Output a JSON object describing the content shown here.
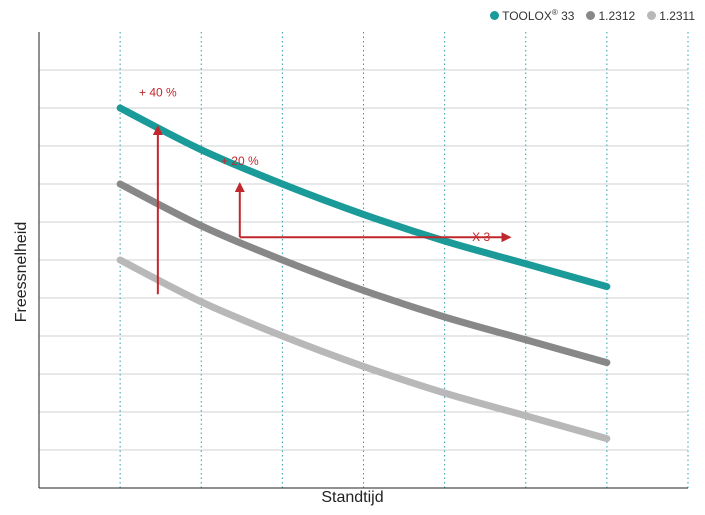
{
  "chart_data": {
    "type": "line",
    "title": "",
    "xlabel": "Standtijd",
    "ylabel": "Freessnelheid",
    "xlim": [
      0,
      16
    ],
    "ylim": [
      0,
      12
    ],
    "grid": true,
    "legend_position": "top-right",
    "series": [
      {
        "name": "TOOLOX® 33",
        "legend_main": "TOOLOX",
        "legend_sup": "®",
        "legend_tail": " 33",
        "color": "#1a9a99",
        "x": [
          2,
          4,
          6,
          8,
          10,
          12,
          14
        ],
        "y": [
          10.0,
          8.9,
          8.0,
          7.2,
          6.5,
          5.9,
          5.3
        ]
      },
      {
        "name": "1.2312",
        "legend_main": "1.2312",
        "legend_sup": "",
        "legend_tail": "",
        "color": "#888888",
        "x": [
          2,
          4,
          6,
          8,
          10,
          12,
          14
        ],
        "y": [
          8.0,
          6.9,
          6.0,
          5.2,
          4.5,
          3.9,
          3.3
        ]
      },
      {
        "name": "1.2311",
        "legend_main": "1.2311",
        "legend_sup": "",
        "legend_tail": "",
        "color": "#b8b8b8",
        "x": [
          2,
          4,
          6,
          8,
          10,
          12,
          14
        ],
        "y": [
          6.0,
          4.9,
          4.0,
          3.2,
          2.5,
          1.9,
          1.3
        ]
      }
    ],
    "annotations": [
      {
        "text": "+ 40 %",
        "x": 2.93,
        "y": 10.3
      },
      {
        "text": "+ 20 %",
        "x": 4.95,
        "y": 8.5
      },
      {
        "text": "X 3",
        "x": 10.9,
        "y": 6.5
      }
    ],
    "arrows": [
      {
        "from": [
          2.93,
          5.1
        ],
        "to": [
          2.93,
          9.5
        ]
      },
      {
        "from": [
          4.95,
          6.6
        ],
        "to": [
          4.95,
          8.0
        ]
      },
      {
        "from": [
          4.95,
          6.6
        ],
        "to": [
          11.6,
          6.6
        ]
      }
    ],
    "arrow_color": "#c0282d"
  }
}
